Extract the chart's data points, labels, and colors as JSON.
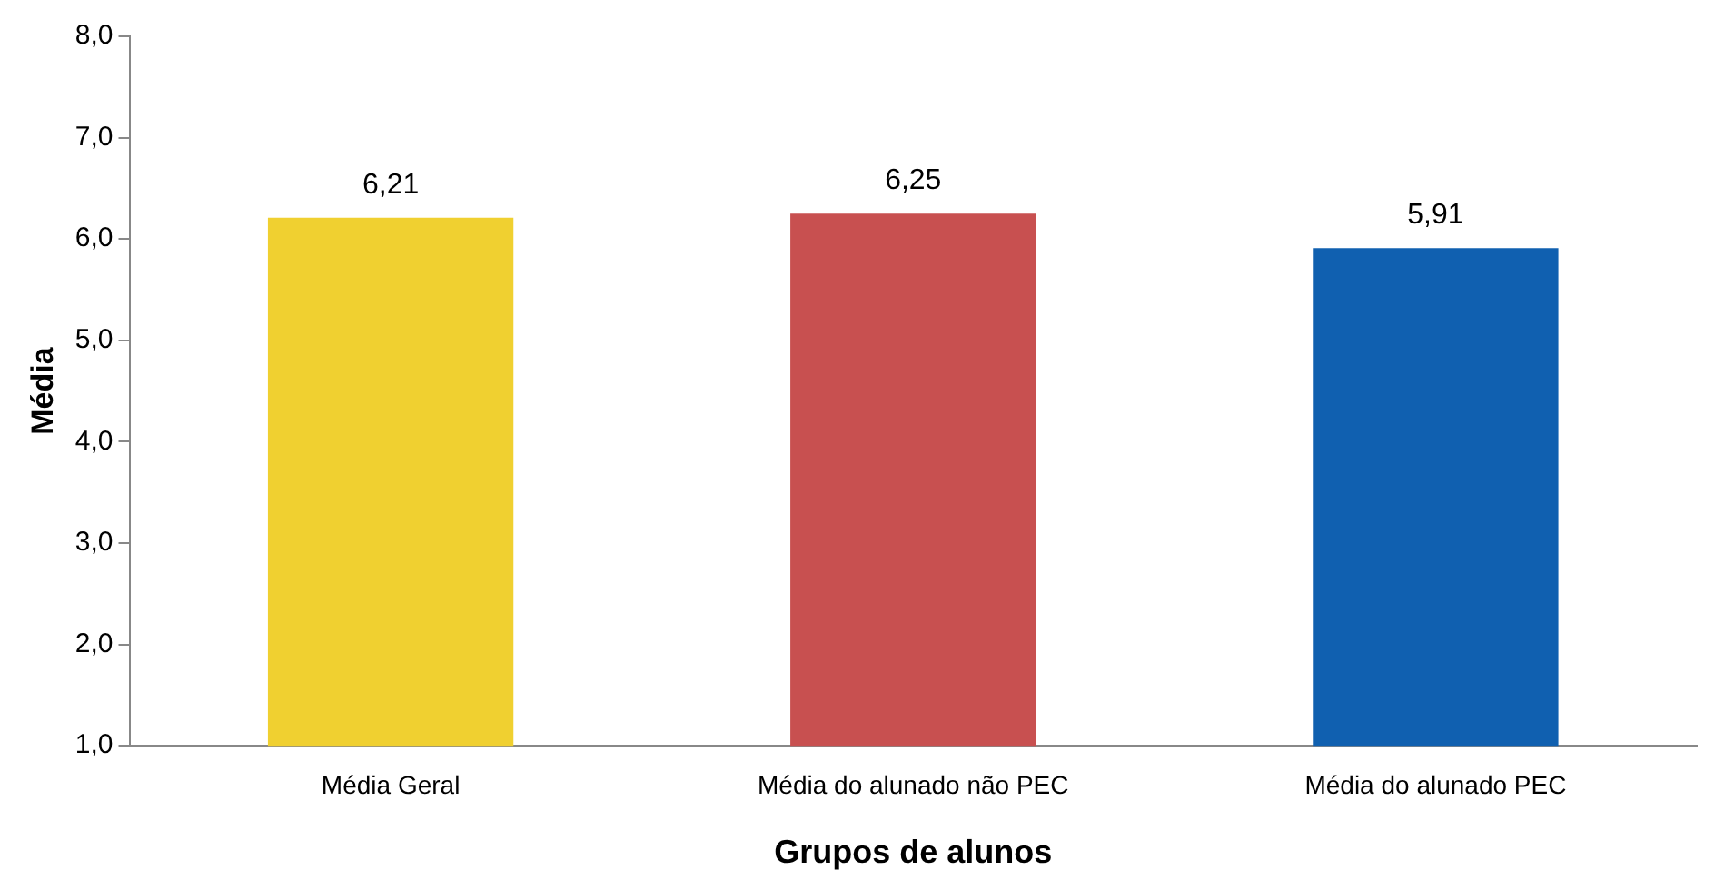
{
  "chart_data": {
    "type": "bar",
    "xlabel": "Grupos de alunos",
    "ylabel": "Média",
    "categories": [
      "Média Geral",
      "Média do alunado não PEC",
      "Média do alunado PEC"
    ],
    "values": [
      6.21,
      6.25,
      5.91
    ],
    "colors": [
      "#f0d030",
      "#c85050",
      "#1060b0"
    ],
    "value_labels": [
      "6,21",
      "6,25",
      "5,91"
    ],
    "ylim": [
      1,
      8
    ],
    "yticks": [
      {
        "value": 1,
        "label": "1,0"
      },
      {
        "value": 2,
        "label": "2,0"
      },
      {
        "value": 3,
        "label": "3,0"
      },
      {
        "value": 4,
        "label": "4,0"
      },
      {
        "value": 5,
        "label": "5,0"
      },
      {
        "value": 6,
        "label": "6,0"
      },
      {
        "value": 7,
        "label": "7,0"
      },
      {
        "value": 8,
        "label": "8,0"
      }
    ],
    "grid": false,
    "legend": false
  }
}
